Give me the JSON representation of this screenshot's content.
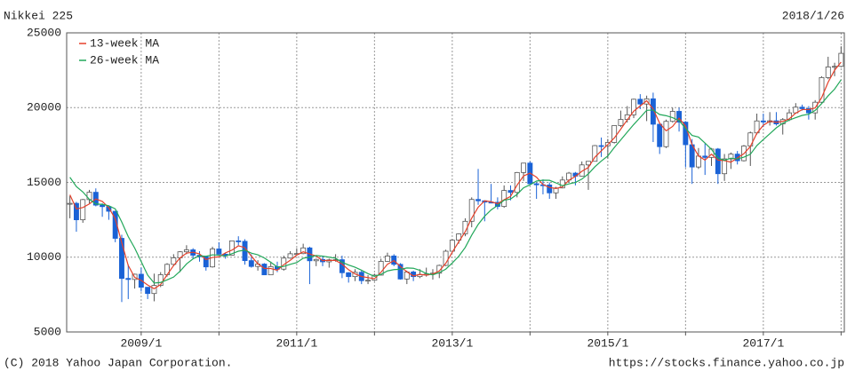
{
  "chart_data": {
    "type": "candlestick",
    "title": "Nikkei 225",
    "date": "2018/1/26",
    "categories": [
      null,
      null,
      null,
      null,
      null,
      null,
      null,
      null,
      null,
      null,
      null,
      "2009/1",
      null,
      null,
      null,
      null,
      null,
      null,
      null,
      null,
      null,
      null,
      null,
      null,
      null,
      null,
      null,
      null,
      null,
      null,
      null,
      null,
      null,
      null,
      null,
      "2011/1",
      null,
      null,
      null,
      null,
      null,
      null,
      null,
      null,
      null,
      null,
      null,
      null,
      null,
      null,
      null,
      null,
      null,
      null,
      null,
      null,
      null,
      null,
      null,
      "2013/1",
      null,
      null,
      null,
      null,
      null,
      null,
      null,
      null,
      null,
      null,
      null,
      null,
      null,
      null,
      null,
      null,
      null,
      null,
      null,
      null,
      null,
      null,
      null,
      "2015/1",
      null,
      null,
      null,
      null,
      null,
      null,
      null,
      null,
      null,
      null,
      null,
      null,
      null,
      null,
      null,
      null,
      null,
      null,
      null,
      null,
      null,
      null,
      null,
      "2017/1",
      null,
      null,
      null,
      null,
      null,
      null,
      null,
      null,
      null,
      null,
      null,
      null
    ],
    "open": [
      13600,
      13600,
      12500,
      13850,
      14340,
      13480,
      13380,
      13070,
      11260,
      8580,
      8510,
      8860,
      7990,
      7570,
      8110,
      8830,
      9520,
      9960,
      10360,
      10490,
      10130,
      10030,
      9350,
      10550,
      10200,
      10130,
      11090,
      11060,
      9770,
      9380,
      9540,
      8820,
      9370,
      9200,
      9940,
      10230,
      10240,
      10620,
      9760,
      9850,
      9690,
      9820,
      9830,
      8960,
      8700,
      8990,
      8430,
      8460,
      8800,
      9720,
      10080,
      9520,
      8540,
      9010,
      8700,
      8840,
      8870,
      8930,
      9450,
      10400,
      11140,
      11560,
      12400,
      13860,
      13770,
      13680,
      13670,
      13390,
      14460,
      14330,
      15660,
      16290,
      14910,
      14840,
      14830,
      14300,
      14630,
      15160,
      15620,
      15420,
      16170,
      16410,
      17460,
      17450,
      17670,
      18800,
      19210,
      19520,
      20560,
      20240,
      20590,
      18890,
      17390,
      19080,
      19750,
      19030,
      17520,
      16030,
      16760,
      16670,
      17230,
      15580,
      16570,
      16890,
      16450,
      17430,
      18310,
      19110,
      19040,
      19120,
      18910,
      19200,
      19650,
      20030,
      19930,
      19650,
      20360,
      22010,
      22720,
      22760
    ],
    "high": [
      14100,
      13700,
      13900,
      14500,
      14600,
      13600,
      13400,
      13100,
      11500,
      9500,
      8900,
      9300,
      8000,
      8900,
      9000,
      9600,
      10200,
      10400,
      10800,
      10600,
      10400,
      10100,
      10700,
      11000,
      10300,
      11100,
      11400,
      11200,
      10200,
      9800,
      9600,
      9700,
      9700,
      10100,
      10400,
      10600,
      10900,
      10700,
      9900,
      10100,
      9900,
      10200,
      10100,
      9000,
      9200,
      9100,
      8800,
      8900,
      9900,
      10300,
      10200,
      9600,
      9100,
      9100,
      9200,
      9300,
      9200,
      9500,
      10500,
      11200,
      11600,
      12600,
      14000,
      15900,
      13800,
      14900,
      14000,
      14800,
      14800,
      15700,
      16300,
      16400,
      15000,
      15200,
      15000,
      14700,
      15400,
      15700,
      15700,
      16400,
      16400,
      17500,
      18000,
      17900,
      18800,
      19800,
      20100,
      20600,
      20900,
      20800,
      21000,
      18900,
      19200,
      20000,
      20000,
      19100,
      17900,
      17300,
      17600,
      17300,
      17300,
      16900,
      17000,
      17100,
      17500,
      18400,
      19600,
      19600,
      19700,
      19700,
      19300,
      19900,
      20300,
      20200,
      20100,
      20500,
      22100,
      23400,
      23000,
      24100
    ],
    "low": [
      12600,
      11700,
      12300,
      13600,
      13400,
      12700,
      12500,
      11000,
      7000,
      7200,
      7900,
      7700,
      7200,
      7050,
      8000,
      8700,
      9400,
      9000,
      10200,
      9900,
      9700,
      9100,
      9300,
      10200,
      9900,
      10100,
      10800,
      9500,
      9300,
      9100,
      8800,
      8800,
      9000,
      9100,
      9900,
      10100,
      10200,
      8200,
      9400,
      9400,
      9300,
      9700,
      8600,
      8300,
      8400,
      8200,
      8200,
      8400,
      8800,
      9700,
      9400,
      8500,
      8200,
      8400,
      8600,
      8700,
      8500,
      8600,
      9400,
      10400,
      10900,
      11400,
      12000,
      13500,
      12400,
      13600,
      13200,
      13300,
      13800,
      14000,
      15100,
      14900,
      13900,
      14200,
      13900,
      13900,
      14600,
      15000,
      14800,
      15400,
      14500,
      16400,
      16700,
      16600,
      17600,
      18700,
      19000,
      19300,
      19900,
      19100,
      17700,
      16900,
      17300,
      19000,
      18400,
      16000,
      14900,
      15900,
      15500,
      16100,
      14900,
      15100,
      15900,
      16200,
      16400,
      16100,
      18200,
      18700,
      18800,
      18800,
      18200,
      19100,
      19600,
      19800,
      19200,
      19200,
      20300,
      21900,
      22100,
      22700
    ],
    "close": [
      13600,
      12500,
      13850,
      14340,
      13480,
      13380,
      13070,
      11260,
      8580,
      8510,
      8860,
      7990,
      7570,
      8110,
      8830,
      9520,
      9960,
      10360,
      10490,
      10130,
      10030,
      9350,
      10550,
      10200,
      10130,
      11090,
      11060,
      9770,
      9380,
      9540,
      8820,
      9370,
      9200,
      9940,
      10230,
      10240,
      10620,
      9760,
      9850,
      9690,
      9820,
      9830,
      8960,
      8700,
      8990,
      8430,
      8460,
      8800,
      9720,
      10080,
      9520,
      8540,
      9010,
      8700,
      8840,
      8870,
      8930,
      9450,
      10400,
      11140,
      11560,
      12400,
      13860,
      13770,
      13680,
      13670,
      13390,
      14460,
      14330,
      15660,
      16290,
      14910,
      14840,
      14830,
      14300,
      14630,
      15160,
      15620,
      15420,
      16170,
      16410,
      17460,
      17450,
      17670,
      18800,
      19210,
      19520,
      20560,
      20240,
      20590,
      18890,
      17390,
      19080,
      19750,
      19030,
      17520,
      16030,
      16760,
      16670,
      17230,
      15580,
      16570,
      16890,
      16450,
      17430,
      18310,
      19110,
      19040,
      19120,
      18910,
      19200,
      19650,
      20030,
      19930,
      19650,
      20360,
      22010,
      22720,
      22760,
      23630
    ],
    "up_color": "#ffffff",
    "up_edge": "#555555",
    "down_color": "#1a62d6",
    "series": [
      {
        "name": "13-week MA",
        "color": "#e5402a",
        "values": [
          14170,
          13230,
          13320,
          13560,
          13890,
          13730,
          13310,
          12570,
          10970,
          9450,
          8650,
          8450,
          8140,
          7890,
          8170,
          8820,
          9440,
          9950,
          10270,
          10330,
          10220,
          9840,
          9980,
          10030,
          10290,
          10470,
          10760,
          10640,
          10070,
          9560,
          9250,
          9240,
          9130,
          9500,
          9790,
          10140,
          10360,
          10210,
          10080,
          9770,
          9790,
          9780,
          9540,
          9160,
          8880,
          8710,
          8630,
          8560,
          8990,
          9530,
          9770,
          9380,
          9020,
          8750,
          8850,
          8800,
          8880,
          9080,
          9590,
          10330,
          11030,
          11700,
          12610,
          13340,
          13770,
          13710,
          13580,
          13840,
          14060,
          14820,
          15430,
          15620,
          15350,
          14860,
          14660,
          14590,
          14700,
          15140,
          15400,
          15740,
          16000,
          16680,
          17110,
          17530,
          17970,
          18560,
          19180,
          19760,
          20110,
          20460,
          19910,
          18960,
          18450,
          18740,
          19290,
          18770,
          17530,
          16770,
          16490,
          16890,
          16490,
          16460,
          16350,
          16640,
          16920,
          17400,
          18280,
          18820,
          19090,
          19020,
          19080,
          19250,
          19630,
          19870,
          19870,
          19980,
          20670,
          21700,
          22500,
          23040
        ]
      },
      {
        "name": "26-week MA",
        "color": "#22a85a",
        "values": [
          15340,
          14720,
          14360,
          13870,
          13560,
          13530,
          13440,
          13230,
          12350,
          11380,
          10610,
          9710,
          8800,
          8270,
          8310,
          8480,
          8670,
          9060,
          9550,
          9890,
          10090,
          10060,
          10160,
          10130,
          10070,
          10230,
          10400,
          10470,
          10270,
          10160,
          9950,
          9660,
          9350,
          9380,
          9520,
          9640,
          9930,
          10000,
          10110,
          10070,
          10000,
          9930,
          9660,
          9480,
          9330,
          9130,
          8900,
          8720,
          8850,
          9080,
          9170,
          9190,
          9280,
          9260,
          9120,
          8910,
          8820,
          8970,
          9200,
          9610,
          10060,
          10650,
          11470,
          12190,
          12740,
          13160,
          13460,
          13810,
          13890,
          14200,
          14640,
          14840,
          15090,
          15150,
          15140,
          14970,
          14780,
          14900,
          15000,
          15220,
          15570,
          16040,
          16430,
          16770,
          17330,
          17840,
          18360,
          18870,
          19340,
          19820,
          19840,
          19540,
          19460,
          19330,
          19130,
          18610,
          18140,
          18030,
          17630,
          17210,
          16630,
          16480,
          16620,
          16570,
          16690,
          16880,
          17460,
          17870,
          18250,
          18650,
          18950,
          19170,
          19330,
          19480,
          19560,
          19810,
          20270,
          20790,
          21240,
          21860
        ]
      }
    ],
    "ylim": [
      5000,
      25000
    ],
    "yticks": [
      5000,
      10000,
      15000,
      20000,
      25000
    ],
    "grid": true,
    "legend": "upper-left"
  },
  "footer": {
    "copyright": "(C) 2018 Yahoo Japan Corporation.",
    "url": "https://stocks.finance.yahoo.co.jp"
  }
}
